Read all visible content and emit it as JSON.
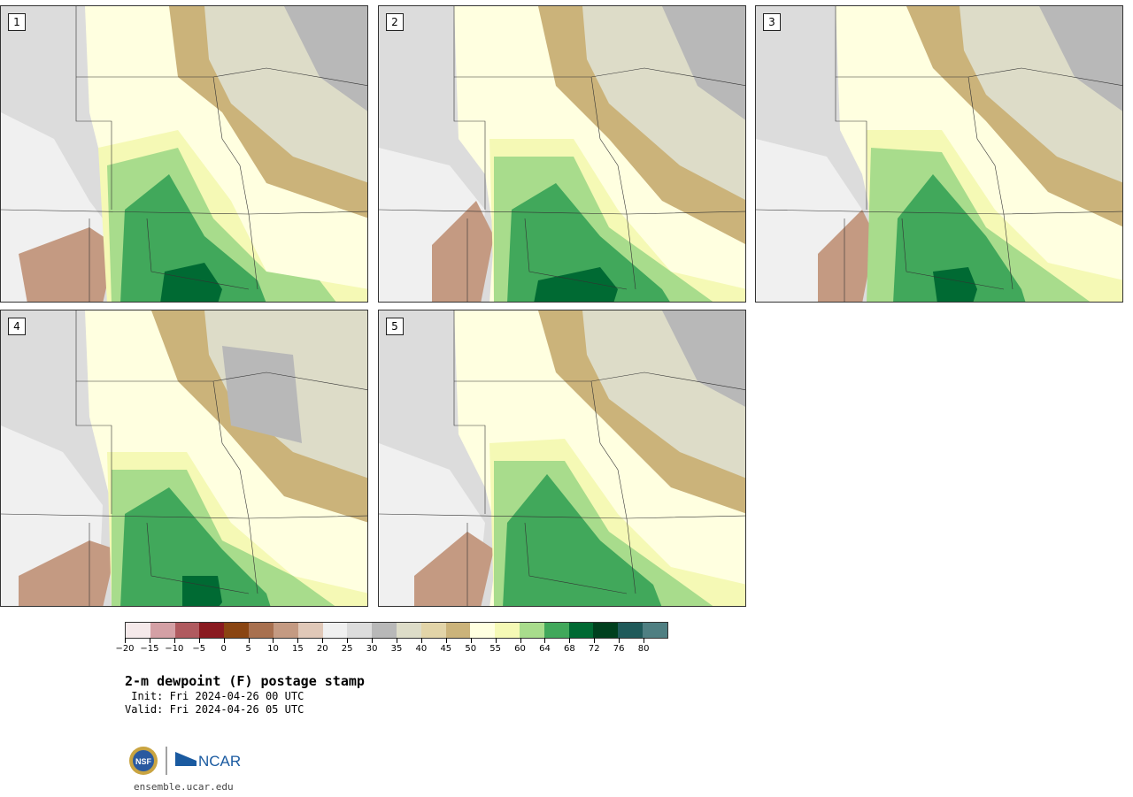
{
  "panels": [
    {
      "label": "1"
    },
    {
      "label": "2"
    },
    {
      "label": "3"
    },
    {
      "label": "4"
    },
    {
      "label": "5"
    }
  ],
  "colorbar": {
    "colors": [
      "#f5e9ea",
      "#d4a0a5",
      "#b05a5f",
      "#8a1a20",
      "#8a4512",
      "#a8704f",
      "#c49a82",
      "#e0c8b8",
      "#f0f0f0",
      "#dcdcdc",
      "#b8b8b8",
      "#dddcc8",
      "#e2d4a8",
      "#cbb37a",
      "#ffffe0",
      "#f5f9b5",
      "#a8dc8c",
      "#41a85b",
      "#006a33",
      "#00401e",
      "#1f5a5a",
      "#4f7f82"
    ],
    "tick_labels": [
      "−20",
      "−15",
      "−10",
      "−5",
      "0",
      "5",
      "10",
      "15",
      "20",
      "25",
      "30",
      "35",
      "40",
      "45",
      "50",
      "55",
      "60",
      "64",
      "68",
      "72",
      "76",
      "80"
    ]
  },
  "title": "2-m dewpoint (F) postage stamp",
  "init": " Init: Fri 2024-04-26 00 UTC",
  "valid": "Valid: Fri 2024-04-26 05 UTC",
  "logo": {
    "nsf_text": "NSF",
    "ncar_text": "NCAR"
  },
  "site": "ensemble.ucar.edu"
}
